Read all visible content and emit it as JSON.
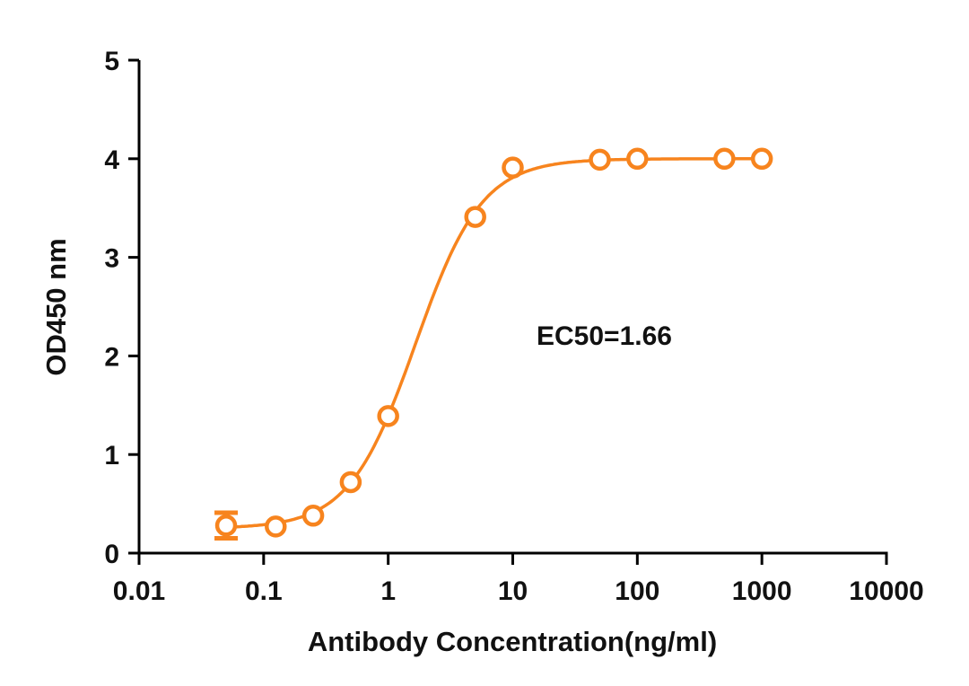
{
  "chart_data": {
    "type": "scatter",
    "xlabel": "Antibody Concentration(ng/ml)",
    "ylabel": "OD450 nm",
    "xscale": "log",
    "xlim": [
      0.01,
      10000
    ],
    "ylim": [
      0,
      5
    ],
    "xticks": [
      "0.01",
      "0.1",
      "1",
      "10",
      "100",
      "1000",
      "10000"
    ],
    "yticks": [
      "0",
      "1",
      "2",
      "3",
      "4",
      "5"
    ],
    "grid": false,
    "annotation": "EC50=1.66",
    "ec50": 1.66,
    "color": "#F7841E",
    "fit_curve": "sigmoidal dose-response",
    "points": [
      {
        "x": 0.05,
        "y": 0.28,
        "err": 0.13
      },
      {
        "x": 0.125,
        "y": 0.27
      },
      {
        "x": 0.25,
        "y": 0.38
      },
      {
        "x": 0.5,
        "y": 0.72
      },
      {
        "x": 1,
        "y": 1.39
      },
      {
        "x": 5,
        "y": 3.41
      },
      {
        "x": 10,
        "y": 3.91
      },
      {
        "x": 50,
        "y": 3.99
      },
      {
        "x": 100,
        "y": 4.0
      },
      {
        "x": 500,
        "y": 4.0
      },
      {
        "x": 1000,
        "y": 4.0
      }
    ]
  }
}
